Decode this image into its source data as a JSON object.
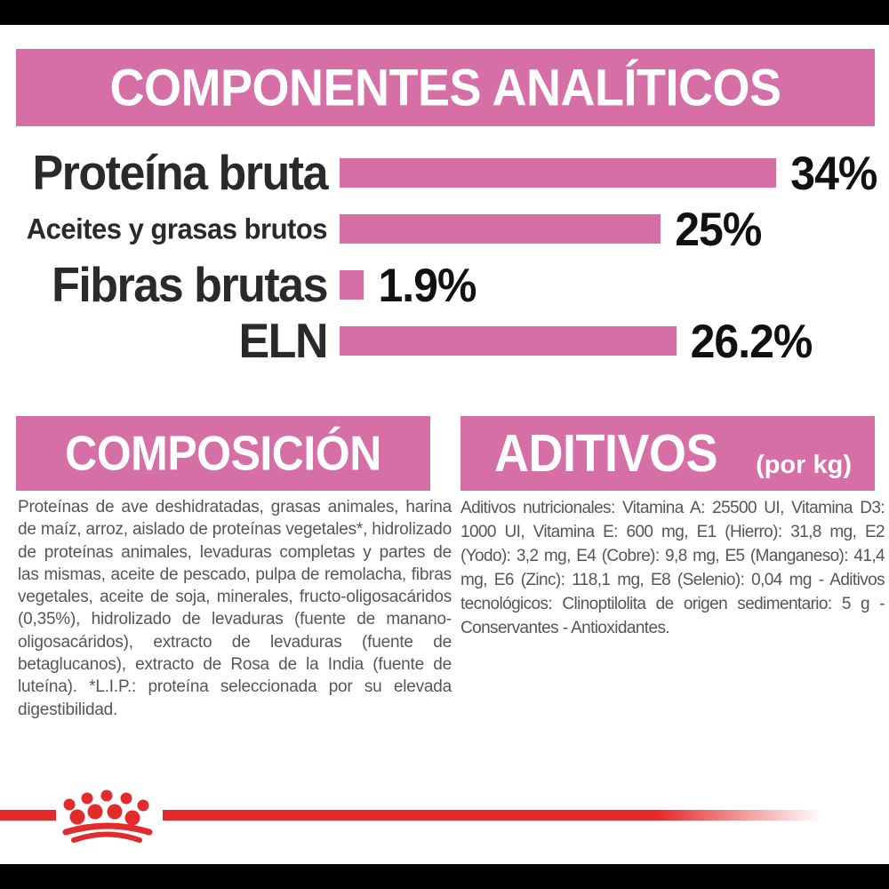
{
  "colors": {
    "accent_pink": "#d56fa6",
    "brand_red": "#e32b2d",
    "heading_text": "#ffffff",
    "chart_label_text": "#2a2a2a",
    "chart_value_text": "#111111",
    "body_text": "#55565a",
    "edge_bar": "#000000"
  },
  "analytical_section": {
    "title": "COMPONENTES ANALÍTICOS"
  },
  "chart_data": {
    "type": "bar",
    "orientation": "horizontal",
    "title": "COMPONENTES ANALÍTICOS",
    "categories": [
      "Proteína bruta",
      "Aceites y grasas brutos",
      "Fibras brutas",
      "ELN"
    ],
    "values": [
      34,
      25,
      1.9,
      26.2
    ],
    "value_labels": [
      "34%",
      "25%",
      "1.9%",
      "26.2%"
    ],
    "unit": "percent",
    "xlim": [
      0,
      40
    ],
    "grid": false,
    "legend": false,
    "bar_color": "#d56fa6"
  },
  "composition_section": {
    "title": "COMPOSICIÓN",
    "lines": [
      "Proteínas de ave deshidratadas, grasas animales,",
      "harina de maíz, arroz, aislado de proteínas vegetales*,",
      "hidrolizado de proteínas animales, levaduras",
      "completas y partes de las mismas, aceite de pescado,",
      "pulpa de remolacha, fibras vegetales, aceite de soja,",
      "minerales, fructo-oligosacáridos (0,35%), hidrolizado",
      "de levaduras (fuente de manano-oligosacáridos),",
      "extracto de levaduras (fuente de betaglucanos),",
      "extracto de Rosa de la India (fuente de luteína).",
      "*L.I.P.: proteína seleccionada por su elevada",
      "digestibilidad."
    ]
  },
  "additives_section": {
    "title": "ADITIVOS",
    "unit_note": "(por kg)",
    "lines": [
      "Aditivos nutricionales: Vitamina A: 25500 UI, Vitamina",
      "D3: 1000 UI, Vitamina E: 600 mg, E1 (Hierro): 31,8 mg,",
      "E2 (Yodo): 3,2 mg, E4 (Cobre): 9,8 mg, E5 (Manganeso):",
      "41,4 mg, E6 (Zinc): 118,1 mg, E8 (Selenio): 0,04 mg -",
      "Aditivos tecnológicos: Clinoptilolita de origen",
      "sedimentario: 5 g - Conservantes - Antioxidantes."
    ]
  },
  "footer": {
    "brand_logo": "royal-canin-crown"
  }
}
